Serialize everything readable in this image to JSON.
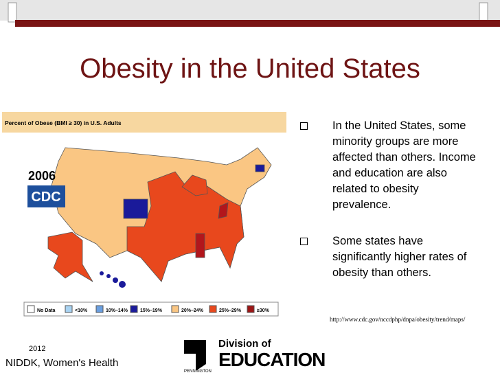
{
  "header": {
    "title": "Obesity in the United States"
  },
  "map": {
    "caption": "Percent of Obese (BMI ≥ 30) in U.S. Adults",
    "year": "2006",
    "logo": "CDC",
    "legend": [
      "No Data",
      "<10%",
      "10%–14%",
      "15%–19%",
      "20%–24%",
      "25%–29%",
      "≥30%"
    ]
  },
  "bullets": [
    "In the United States, some minority groups are more affected than others. Income and education are also related to obesity prevalence.",
    "Some states have significantly higher rates of obesity than others."
  ],
  "source": "http://www.cdc.gov/nccdphp/dnpa/obesity/trend/maps/",
  "footer": {
    "year": "2012",
    "org": "NIDDK, Women's Health",
    "logo_line1": "Division of",
    "logo_line2": "EDUCATION",
    "logo_small": "PENNINGTON"
  }
}
